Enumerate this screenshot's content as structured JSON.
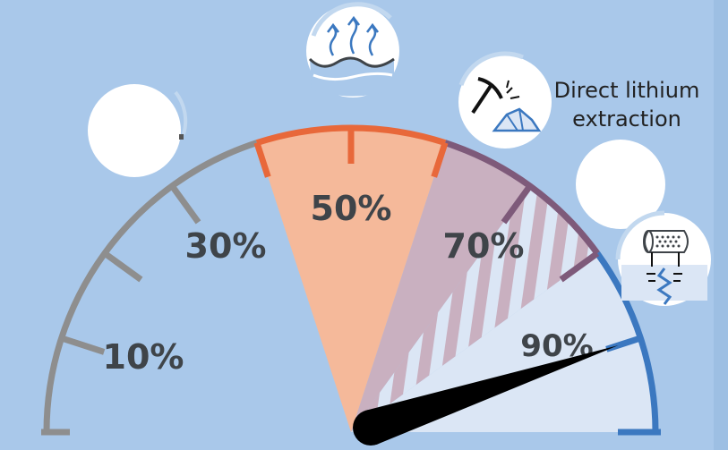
{
  "gauge": {
    "labels": [
      {
        "key": "p10",
        "text": "10%"
      },
      {
        "key": "p30",
        "text": "30%"
      },
      {
        "key": "p50",
        "text": "50%"
      },
      {
        "key": "p70",
        "text": "70%"
      },
      {
        "key": "p90",
        "text": "90%"
      }
    ],
    "needle_percent": 90
  },
  "callouts": {
    "dle_line1": "Direct lithium",
    "dle_line2": "extraction"
  },
  "icons": [
    "evaporation-icon",
    "mining-pick-icon",
    "drilling-rig-icon"
  ],
  "colors": {
    "background": "#a9c8ea",
    "gray_arc": "#8e8e8e",
    "orange_arc": "#e8683a",
    "orange_fill": "#f5b99a",
    "purple_arc": "#7e5a7a",
    "purple_fill": "#c9b0c0",
    "blue_arc": "#3b78c0",
    "blue_fill": "#dbe6f5",
    "label_text": "#3f4449",
    "needle": "#000000"
  }
}
